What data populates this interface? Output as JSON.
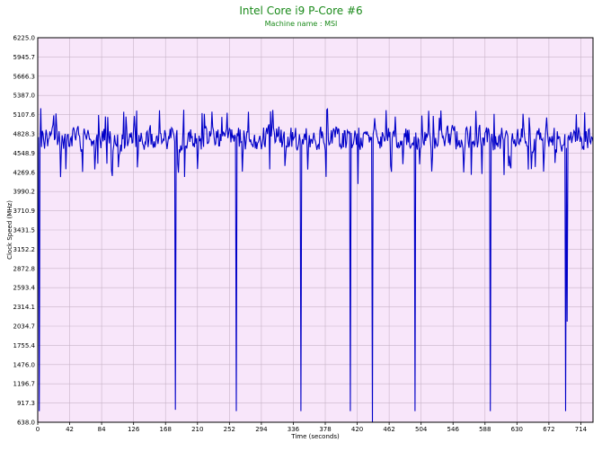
{
  "colors": {
    "plot_background": "#f8e6fa",
    "grid": "#c8b4c8",
    "series": "#0000c8",
    "title": "#1a8a1a",
    "axis": "#000000"
  },
  "chart_data": {
    "type": "line",
    "title": "Intel Core i9 P-Core #6",
    "subtitle": "Machine name : MSI",
    "xlabel": "Time (seconds)",
    "ylabel": "Clock Speed (MHz)",
    "xlim": [
      0,
      730
    ],
    "ylim": [
      638.0,
      6225.0
    ],
    "x_ticks": [
      0,
      42,
      84,
      126,
      168,
      210,
      252,
      294,
      336,
      378,
      420,
      462,
      504,
      546,
      588,
      630,
      672,
      714
    ],
    "y_ticks": [
      "638.0",
      "917.3",
      "1196.7",
      "1476.0",
      "1755.4",
      "2034.7",
      "2314.1",
      "2593.4",
      "2872.8",
      "3152.2",
      "3431.5",
      "3710.9",
      "3990.2",
      "4269.6",
      "4548.9",
      "4828.3",
      "5107.6",
      "5387.0",
      "5666.3",
      "5945.7",
      "6225.0"
    ],
    "grid": true,
    "series": [
      {
        "baseline_mean": 4760,
        "noise_amplitude": 220,
        "sample_interval": 1,
        "drops": [
          {
            "x": 2,
            "y": 800
          },
          {
            "x": 181,
            "y": 820
          },
          {
            "x": 261,
            "y": 800
          },
          {
            "x": 346,
            "y": 800
          },
          {
            "x": 411,
            "y": 800
          },
          {
            "x": 421,
            "y": 4100
          },
          {
            "x": 440,
            "y": 640
          },
          {
            "x": 496,
            "y": 800
          },
          {
            "x": 595,
            "y": 800
          },
          {
            "x": 694,
            "y": 800
          },
          {
            "x": 696,
            "y": 2100
          }
        ],
        "peaks": [
          {
            "x": 4,
            "y": 5200
          },
          {
            "x": 113,
            "y": 5150
          },
          {
            "x": 380,
            "y": 5180
          },
          {
            "x": 381,
            "y": 5190
          },
          {
            "x": 600,
            "y": 5120
          }
        ]
      }
    ]
  }
}
